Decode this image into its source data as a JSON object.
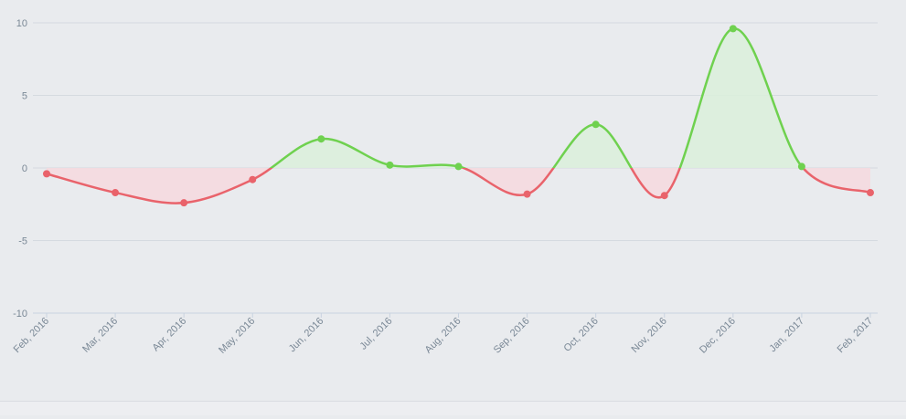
{
  "chart_data": {
    "type": "line",
    "title": "",
    "xlabel": "",
    "ylabel": "",
    "categories": [
      "Feb, 2016",
      "Mar, 2016",
      "Apr, 2016",
      "May, 2016",
      "Jun, 2016",
      "Jul, 2016",
      "Aug, 2016",
      "Sep, 2016",
      "Oct, 2016",
      "Nov, 2016",
      "Dec, 2016",
      "Jan, 2017",
      "Feb, 2017"
    ],
    "series": [
      {
        "values": [
          -0.4,
          -1.7,
          -2.4,
          -0.8,
          2.0,
          0.2,
          0.1,
          -1.8,
          3.0,
          -1.9,
          9.6,
          0.1,
          -1.7
        ]
      }
    ],
    "ylim": [
      -10,
      10
    ],
    "yticks": [
      10,
      5,
      0,
      -5,
      -10
    ],
    "grid": true,
    "colors": {
      "positive": "#6fd14f",
      "negative": "#e9636b",
      "positive_fill": "#daf0da",
      "negative_fill": "#f6d9de",
      "grid": "#d5dae0",
      "tick_text": "#7a8896"
    }
  }
}
